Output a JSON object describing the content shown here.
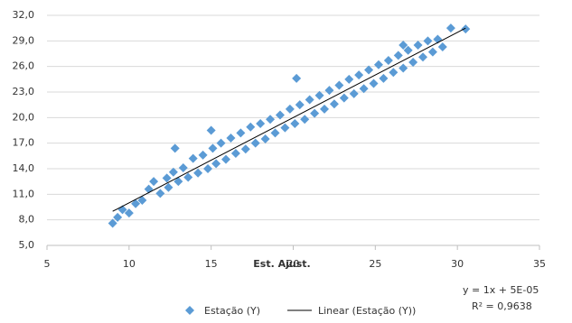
{
  "chart_data": {
    "type": "scatter",
    "xlabel": "Est. Ajust.",
    "series": [
      {
        "name": "Estação (Y)",
        "color": "#5b9bd5",
        "x": [
          9.0,
          9.3,
          9.6,
          10.0,
          10.4,
          10.8,
          11.2,
          11.5,
          11.9,
          12.3,
          12.4,
          12.7,
          13.0,
          13.3,
          13.6,
          13.9,
          14.2,
          14.5,
          14.8,
          15.1,
          15.3,
          15.6,
          15.9,
          16.2,
          16.5,
          16.8,
          17.1,
          17.4,
          17.7,
          18.0,
          18.3,
          18.6,
          18.9,
          19.2,
          19.5,
          19.8,
          20.1,
          20.4,
          20.7,
          21.0,
          21.3,
          21.6,
          21.9,
          22.2,
          22.5,
          22.8,
          23.1,
          23.4,
          23.7,
          24.0,
          24.3,
          24.6,
          24.9,
          25.2,
          25.5,
          25.8,
          26.1,
          26.4,
          26.7,
          27.0,
          27.3,
          27.6,
          27.9,
          28.2,
          28.5,
          28.8,
          29.1,
          29.6,
          30.5,
          12.8,
          20.2,
          26.7,
          15.0
        ],
        "values": [
          7.6,
          8.3,
          9.2,
          8.8,
          9.9,
          10.3,
          11.6,
          12.5,
          11.1,
          12.9,
          11.8,
          13.6,
          12.5,
          14.1,
          13.0,
          15.2,
          13.5,
          15.6,
          14.0,
          16.4,
          14.6,
          17.0,
          15.1,
          17.6,
          15.8,
          18.2,
          16.3,
          18.9,
          17.0,
          19.3,
          17.5,
          19.8,
          18.2,
          20.3,
          18.8,
          21.0,
          19.3,
          21.5,
          19.8,
          22.1,
          20.5,
          22.6,
          21.0,
          23.2,
          21.6,
          23.8,
          22.3,
          24.5,
          22.8,
          25.0,
          23.4,
          25.6,
          24.0,
          26.2,
          24.6,
          26.7,
          25.3,
          27.3,
          25.8,
          27.9,
          26.5,
          28.5,
          27.1,
          29.0,
          27.7,
          29.2,
          28.3,
          30.5,
          30.4,
          16.4,
          24.6,
          28.5,
          18.5
        ]
      }
    ],
    "trendline": {
      "name": "Linear (Estação (Y))",
      "color": "#000000",
      "x": [
        9.0,
        30.5
      ],
      "values": [
        9.0,
        30.5
      ]
    },
    "annotations": [
      "y = 1x + 5E-05",
      "R² = 0,9638"
    ],
    "xlim": [
      5,
      35
    ],
    "xticks": [
      5,
      10,
      15,
      20,
      25,
      30,
      35
    ],
    "ylim": [
      5,
      32
    ],
    "yticks": [
      {
        "value": 5,
        "label": "5,0"
      },
      {
        "value": 8,
        "label": "8,0"
      },
      {
        "value": 11,
        "label": "11,0"
      },
      {
        "value": 14,
        "label": "14,0"
      },
      {
        "value": 17,
        "label": "17,0"
      },
      {
        "value": 20,
        "label": "20,0"
      },
      {
        "value": 23,
        "label": "23,0"
      },
      {
        "value": 26,
        "label": "26,0"
      },
      {
        "value": 29,
        "label": "29,0"
      },
      {
        "value": 32,
        "label": "32,0"
      }
    ],
    "grid": true
  }
}
